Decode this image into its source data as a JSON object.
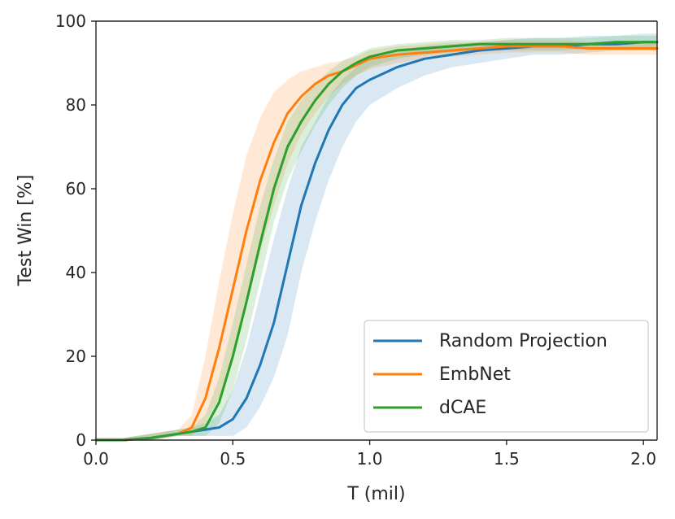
{
  "chart_data": {
    "type": "line",
    "title": "",
    "xlabel": "T (mil)",
    "ylabel": "Test Win [%]",
    "xlim": [
      0.0,
      2.05
    ],
    "ylim": [
      0,
      100
    ],
    "xticks": [
      0.0,
      0.5,
      1.0,
      1.5,
      2.0
    ],
    "xtick_labels": [
      "0.0",
      "0.5",
      "1.0",
      "1.5",
      "2.0"
    ],
    "yticks": [
      0,
      20,
      40,
      60,
      80,
      100
    ],
    "ytick_labels": [
      "0",
      "20",
      "40",
      "60",
      "80",
      "100"
    ],
    "grid": false,
    "legend_position": "lower-right",
    "x": [
      0.0,
      0.1,
      0.2,
      0.3,
      0.35,
      0.4,
      0.45,
      0.5,
      0.55,
      0.6,
      0.65,
      0.7,
      0.75,
      0.8,
      0.85,
      0.9,
      0.95,
      1.0,
      1.1,
      1.2,
      1.3,
      1.4,
      1.5,
      1.6,
      1.7,
      1.8,
      1.9,
      2.0,
      2.05
    ],
    "series": [
      {
        "name": "Random Projection",
        "color": "#1f77b4",
        "values": [
          0,
          0,
          0.5,
          1.5,
          2,
          2.5,
          3,
          5,
          10,
          18,
          28,
          42,
          56,
          66,
          74,
          80,
          84,
          86,
          89,
          91,
          92,
          93,
          93.5,
          94,
          94,
          94.5,
          94.5,
          95,
          95
        ],
        "lower": [
          0,
          0,
          0,
          1,
          1,
          1,
          1,
          1,
          3,
          8,
          15,
          25,
          40,
          52,
          62,
          70,
          76,
          80,
          84,
          87,
          89,
          90,
          91,
          92,
          92,
          92.5,
          93,
          93,
          93
        ],
        "upper": [
          0.5,
          0.5,
          1.5,
          2.5,
          3,
          4,
          6,
          12,
          22,
          35,
          48,
          60,
          70,
          76,
          82,
          86,
          89,
          91,
          93,
          94,
          94.5,
          95,
          95.5,
          96,
          96,
          96.5,
          96.5,
          97,
          97
        ]
      },
      {
        "name": "EmbNet",
        "color": "#ff7f0e",
        "values": [
          0,
          0,
          0.5,
          1.5,
          3,
          10,
          22,
          36,
          50,
          62,
          71,
          78,
          82,
          85,
          87,
          88,
          89.5,
          91,
          92,
          92.5,
          93,
          93.5,
          94,
          94,
          94,
          93.5,
          93.5,
          93.5,
          93.5
        ],
        "lower": [
          0,
          0,
          0,
          1,
          1,
          4,
          10,
          20,
          32,
          45,
          56,
          66,
          73,
          78,
          82,
          85,
          87,
          88.5,
          90,
          91,
          91.5,
          92,
          92.5,
          92.5,
          92.5,
          92,
          92,
          92,
          92
        ],
        "upper": [
          0.5,
          0.5,
          1.5,
          2.5,
          6,
          20,
          38,
          54,
          68,
          77,
          83,
          86,
          88,
          89,
          90,
          90.5,
          91.5,
          93,
          94,
          94.5,
          95,
          95,
          95.5,
          95.5,
          95.5,
          95,
          95,
          95,
          95
        ]
      },
      {
        "name": "dCAE",
        "color": "#2ca02c",
        "values": [
          0,
          0,
          0.5,
          1.5,
          2,
          3,
          9,
          20,
          33,
          47,
          60,
          70,
          76,
          81,
          85,
          88,
          90,
          91.5,
          93,
          93.5,
          94,
          94.5,
          94.5,
          94.5,
          94.5,
          94.5,
          95,
          95,
          95
        ],
        "lower": [
          0,
          0,
          0,
          1,
          1,
          1,
          4,
          12,
          24,
          38,
          52,
          62,
          69,
          75,
          80,
          84,
          87,
          89,
          91,
          92,
          92.5,
          93,
          93,
          93,
          93,
          93.5,
          93.5,
          93.5,
          93.5
        ],
        "upper": [
          0.5,
          0.5,
          1.5,
          2.5,
          3,
          6,
          15,
          28,
          42,
          56,
          67,
          76,
          81,
          85,
          88,
          90.5,
          92,
          93.5,
          94.5,
          95,
          95.5,
          95.5,
          96,
          96,
          96,
          96,
          96.5,
          96.5,
          96.5
        ]
      }
    ]
  }
}
